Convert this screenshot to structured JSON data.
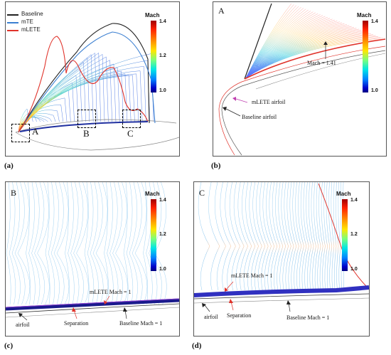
{
  "colorbar": {
    "title": "Mach",
    "ticks": [
      "1.4",
      "1.2",
      "1.0"
    ]
  },
  "colors": {
    "baseline": "#222222",
    "mte": "#3b7fd1",
    "mlete": "#e0332b"
  },
  "panel_a": {
    "caption": "(a)",
    "legend": [
      "Baseline",
      "mTE",
      "mLETE"
    ],
    "box_labels": [
      "A",
      "B",
      "C"
    ]
  },
  "panel_b": {
    "caption": "(b)",
    "corner": "A",
    "mach_note": "Mach = 1.41",
    "mlete_airfoil": "mLETE airfoil",
    "baseline_airfoil": "Baseline airfoil"
  },
  "panel_c": {
    "caption": "(c)",
    "corner": "B",
    "mlete_mach": "mLETE Mach = 1",
    "airfoil": "airfoil",
    "separation": "Separation",
    "baseline_mach": "Baseline Mach = 1"
  },
  "panel_d": {
    "caption": "(d)",
    "corner": "C",
    "mlete_mach": "mLETE Mach = 1",
    "airfoil": "airfoil",
    "separation": "Separation",
    "baseline_mach": "Baseline Mach = 1"
  }
}
